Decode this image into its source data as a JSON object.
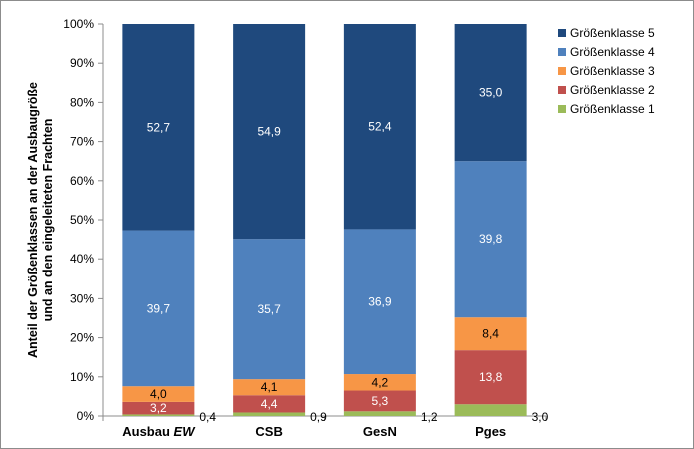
{
  "chart_data": {
    "type": "bar",
    "stacked": true,
    "categories": [
      "Ausbau",
      "CSB",
      "GesN",
      "Pges"
    ],
    "category_suffix": [
      "EW",
      "",
      "",
      ""
    ],
    "series": [
      {
        "name": "Größenklasse 1",
        "values": [
          0.4,
          0.9,
          1.2,
          3.0
        ],
        "color": "#9bbb59",
        "labels": [
          "0,4",
          "0,9",
          "1,2",
          "3,0"
        ],
        "label_position": "outside-right"
      },
      {
        "name": "Größenklasse 2",
        "values": [
          3.2,
          4.4,
          5.3,
          13.8
        ],
        "color": "#c0504d",
        "labels": [
          "3,2",
          "4,4",
          "5,3",
          "13,8"
        ],
        "label_color": "#ffffff"
      },
      {
        "name": "Größenklasse 3",
        "values": [
          4.0,
          4.1,
          4.2,
          8.4
        ],
        "color": "#f79646",
        "labels": [
          "4,0",
          "4,1",
          "4,2",
          "8,4"
        ],
        "label_color": "#000000"
      },
      {
        "name": "Größenklasse 4",
        "values": [
          39.7,
          35.7,
          36.9,
          39.8
        ],
        "color": "#4f81bd",
        "labels": [
          "39,7",
          "35,7",
          "36,9",
          "39,8"
        ],
        "label_color": "#ffffff"
      },
      {
        "name": "Größenklasse 5",
        "values": [
          52.7,
          54.9,
          52.4,
          35.0
        ],
        "color": "#1f497d",
        "labels": [
          "52,7",
          "54,9",
          "52,4",
          "35,0"
        ],
        "label_color": "#ffffff"
      }
    ],
    "y_ticks": [
      "0%",
      "10%",
      "20%",
      "30%",
      "40%",
      "50%",
      "60%",
      "70%",
      "80%",
      "90%",
      "100%"
    ],
    "ylim": [
      0,
      100
    ],
    "ylabel_line1": "Anteil der Größenklassen an der Ausbaugröße",
    "ylabel_line2": "und an den eingeleiteten Frachten",
    "xlabel": "",
    "grid": false,
    "legend_position": "right",
    "legend_order": [
      4,
      3,
      2,
      1,
      0
    ]
  }
}
